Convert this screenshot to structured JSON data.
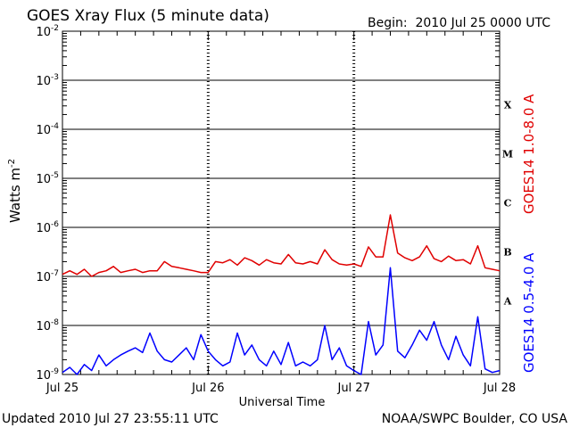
{
  "chart_data": {
    "type": "line",
    "title": "GOES Xray Flux (5 minute data)",
    "begin_label": "Begin:  2010 Jul 25 0000 UTC",
    "xlabel": "Universal Time",
    "ylabel_main": "Watts m",
    "ylabel_sup": "-2",
    "x_ticks": [
      "Jul 25",
      "Jul 26",
      "Jul 27",
      "Jul 28"
    ],
    "x_range_days": [
      0,
      3
    ],
    "y_scale": "log",
    "ylim": [
      1e-09,
      0.01
    ],
    "y_ticks": [
      {
        "base": "10",
        "exp": "-2"
      },
      {
        "base": "10",
        "exp": "-3"
      },
      {
        "base": "10",
        "exp": "-4"
      },
      {
        "base": "10",
        "exp": "-5"
      },
      {
        "base": "10",
        "exp": "-6"
      },
      {
        "base": "10",
        "exp": "-7"
      },
      {
        "base": "10",
        "exp": "-8"
      },
      {
        "base": "10",
        "exp": "-9"
      }
    ],
    "flare_classes": [
      "X",
      "M",
      "C",
      "B",
      "A"
    ],
    "grid": true,
    "series": [
      {
        "name": "GOES14 1.0-8.0 A",
        "color": "#e00000",
        "x": [
          0.0,
          0.05,
          0.1,
          0.15,
          0.2,
          0.25,
          0.3,
          0.35,
          0.4,
          0.45,
          0.5,
          0.55,
          0.6,
          0.65,
          0.7,
          0.75,
          0.8,
          0.85,
          0.9,
          0.95,
          1.0,
          1.05,
          1.1,
          1.15,
          1.2,
          1.25,
          1.3,
          1.35,
          1.4,
          1.45,
          1.5,
          1.55,
          1.6,
          1.65,
          1.7,
          1.75,
          1.8,
          1.85,
          1.9,
          1.95,
          2.0,
          2.05,
          2.1,
          2.15,
          2.2,
          2.25,
          2.3,
          2.35,
          2.4,
          2.45,
          2.5,
          2.55,
          2.6,
          2.65,
          2.7,
          2.75,
          2.8,
          2.85,
          2.9,
          2.95,
          3.0
        ],
        "y": [
          1.1e-07,
          1.3e-07,
          1.1e-07,
          1.4e-07,
          1e-07,
          1.2e-07,
          1.3e-07,
          1.6e-07,
          1.2e-07,
          1.3e-07,
          1.4e-07,
          1.2e-07,
          1.3e-07,
          1.3e-07,
          2e-07,
          1.6e-07,
          1.5e-07,
          1.4e-07,
          1.3e-07,
          1.2e-07,
          1.2e-07,
          2e-07,
          1.9e-07,
          2.2e-07,
          1.7e-07,
          2.4e-07,
          2.1e-07,
          1.7e-07,
          2.2e-07,
          1.9e-07,
          1.8e-07,
          2.8e-07,
          1.9e-07,
          1.8e-07,
          2e-07,
          1.8e-07,
          3.5e-07,
          2.2e-07,
          1.8e-07,
          1.7e-07,
          1.8e-07,
          1.6e-07,
          4e-07,
          2.5e-07,
          2.5e-07,
          1.8e-06,
          3e-07,
          2.4e-07,
          2.1e-07,
          2.5e-07,
          4.2e-07,
          2.3e-07,
          2e-07,
          2.6e-07,
          2.1e-07,
          2.2e-07,
          1.8e-07,
          4.2e-07,
          1.5e-07,
          1.4e-07,
          1.3e-07
        ]
      },
      {
        "name": "GOES14 0.5-4.0 A",
        "color": "#0000ff",
        "x": [
          0.0,
          0.05,
          0.1,
          0.15,
          0.2,
          0.25,
          0.3,
          0.35,
          0.4,
          0.45,
          0.5,
          0.55,
          0.6,
          0.65,
          0.7,
          0.75,
          0.8,
          0.85,
          0.9,
          0.95,
          1.0,
          1.05,
          1.1,
          1.15,
          1.2,
          1.25,
          1.3,
          1.35,
          1.4,
          1.45,
          1.5,
          1.55,
          1.6,
          1.65,
          1.7,
          1.75,
          1.8,
          1.85,
          1.9,
          1.95,
          2.0,
          2.05,
          2.1,
          2.15,
          2.2,
          2.25,
          2.3,
          2.35,
          2.4,
          2.45,
          2.5,
          2.55,
          2.6,
          2.65,
          2.7,
          2.75,
          2.8,
          2.85,
          2.9,
          2.95,
          3.0
        ],
        "y": [
          1.1e-09,
          1.4e-09,
          1e-09,
          1.6e-09,
          1.2e-09,
          2.5e-09,
          1.5e-09,
          2e-09,
          2.5e-09,
          3e-09,
          3.5e-09,
          2.8e-09,
          7e-09,
          3e-09,
          2e-09,
          1.8e-09,
          2.5e-09,
          3.5e-09,
          2e-09,
          6.5e-09,
          3e-09,
          2e-09,
          1.5e-09,
          1.8e-09,
          7e-09,
          2.5e-09,
          4e-09,
          2e-09,
          1.5e-09,
          3e-09,
          1.6e-09,
          4.5e-09,
          1.5e-09,
          1.8e-09,
          1.5e-09,
          2e-09,
          1e-08,
          2e-09,
          3.5e-09,
          1.5e-09,
          1.2e-09,
          1e-09,
          1.2e-08,
          2.5e-09,
          4e-09,
          1.5e-07,
          3e-09,
          2.2e-09,
          4e-09,
          8e-09,
          5e-09,
          1.2e-08,
          4e-09,
          2e-09,
          6e-09,
          2.5e-09,
          1.5e-09,
          1.5e-08,
          1.3e-09,
          1.1e-09,
          1.2e-09
        ]
      }
    ]
  },
  "footer": {
    "updated": "Updated 2010 Jul 27 23:55:11 UTC",
    "source": "NOAA/SWPC Boulder, CO USA"
  }
}
